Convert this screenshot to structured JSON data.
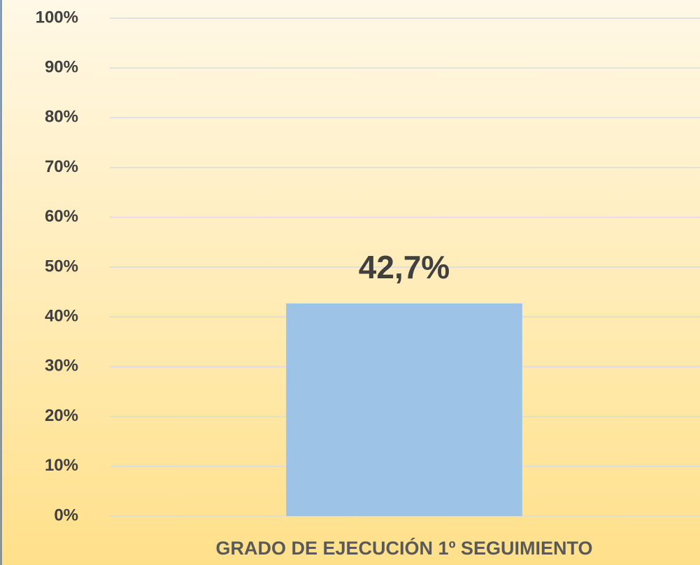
{
  "chart_data": {
    "type": "bar",
    "categories": [
      "GRADO DE EJECUCIÓN 1º SEGUIMIENTO"
    ],
    "values": [
      42.7
    ],
    "value_labels": [
      "42,7%"
    ],
    "color": "#9dc3e6",
    "ylim": [
      0,
      100
    ],
    "yticks": [
      {
        "value": 0,
        "label": "0%"
      },
      {
        "value": 10,
        "label": "10%"
      },
      {
        "value": 20,
        "label": "20%"
      },
      {
        "value": 30,
        "label": "30%"
      },
      {
        "value": 40,
        "label": "40%"
      },
      {
        "value": 50,
        "label": "50%"
      },
      {
        "value": 60,
        "label": "60%"
      },
      {
        "value": 70,
        "label": "70%"
      },
      {
        "value": 80,
        "label": "80%"
      },
      {
        "value": 90,
        "label": "90%"
      },
      {
        "value": 100,
        "label": "100%"
      }
    ],
    "grid": true
  }
}
